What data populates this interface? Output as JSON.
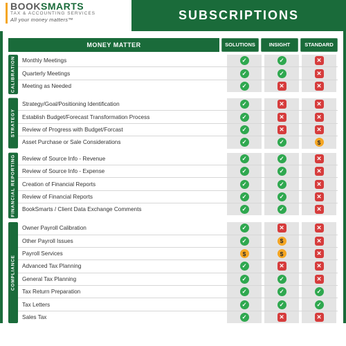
{
  "colors": {
    "brand_green": "#1a6b3a",
    "check_green": "#2fa84f",
    "cross_red": "#d63c3c",
    "dollar_gold": "#f5a623",
    "cell_grey": "#e4e4e4"
  },
  "logo": {
    "main_a": "BOOK",
    "main_b": "SMARTS",
    "sub": "TAX & ACCOUNTING SERVICES",
    "tagline": "All your money matters™"
  },
  "banner_title": "SUBSCRIPTIONS",
  "headers": {
    "money_matter": "MONEY MATTER",
    "plans": [
      "SOLUTIONS",
      "INSIGHT",
      "STANDARD"
    ]
  },
  "glyphs": {
    "check": "✓",
    "cross": "✕",
    "dollar": "$"
  },
  "sections": [
    {
      "label": "CALIBRATION",
      "rows": [
        {
          "label": "Monthly Meetings",
          "cells": [
            "check",
            "check",
            "cross"
          ]
        },
        {
          "label": "Quarterly Meetings",
          "cells": [
            "check",
            "check",
            "cross"
          ]
        },
        {
          "label": "Meeting as Needed",
          "cells": [
            "check",
            "cross",
            "cross"
          ]
        }
      ]
    },
    {
      "label": "STRATEGY",
      "rows": [
        {
          "label": "Strategy/Goal/Positioning Identification",
          "cells": [
            "check",
            "cross",
            "cross"
          ]
        },
        {
          "label": "Establish Budget/Forecast Transformation Process",
          "cells": [
            "check",
            "cross",
            "cross"
          ]
        },
        {
          "label": "Review of Progress with Budget/Forcast",
          "cells": [
            "check",
            "cross",
            "cross"
          ]
        },
        {
          "label": "Asset Purchase or Sale Considerations",
          "cells": [
            "check",
            "check",
            "dollar"
          ]
        }
      ]
    },
    {
      "label": "FINANCIAL REPORTING",
      "rows": [
        {
          "label": "Review of Source Info - Revenue",
          "cells": [
            "check",
            "check",
            "cross"
          ]
        },
        {
          "label": "Review of Source Info - Expense",
          "cells": [
            "check",
            "check",
            "cross"
          ]
        },
        {
          "label": "Creation of Financial Reports",
          "cells": [
            "check",
            "check",
            "cross"
          ]
        },
        {
          "label": "Review of Financial Reports",
          "cells": [
            "check",
            "check",
            "cross"
          ]
        },
        {
          "label": "BookSmarts / Client Data Exchange Comments",
          "cells": [
            "check",
            "check",
            "cross"
          ]
        }
      ]
    },
    {
      "label": "COMPLIANCE",
      "rows": [
        {
          "label": "Owner Payroll Calibration",
          "cells": [
            "check",
            "cross",
            "cross"
          ]
        },
        {
          "label": "Other Payroll Issues",
          "cells": [
            "check",
            "dollar",
            "cross"
          ]
        },
        {
          "label": "Payroll Services",
          "cells": [
            "dollar",
            "dollar",
            "cross"
          ]
        },
        {
          "label": "Advanced Tax Planning",
          "cells": [
            "check",
            "cross",
            "cross"
          ]
        },
        {
          "label": "General Tax Planning",
          "cells": [
            "check",
            "check",
            "cross"
          ]
        },
        {
          "label": "Tax Return Preparation",
          "cells": [
            "check",
            "check",
            "check"
          ]
        },
        {
          "label": "Tax Letters",
          "cells": [
            "check",
            "check",
            "check"
          ]
        },
        {
          "label": "Sales Tax",
          "cells": [
            "check",
            "cross",
            "cross"
          ]
        }
      ]
    }
  ]
}
